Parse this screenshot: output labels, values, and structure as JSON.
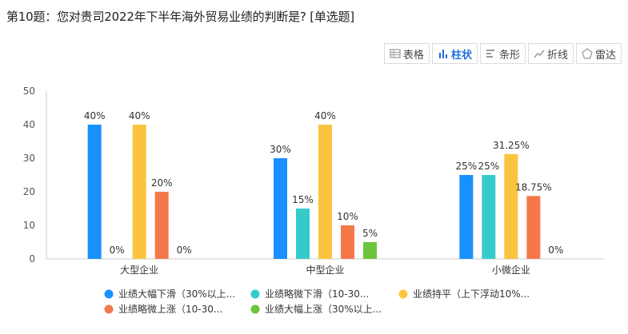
{
  "question": {
    "title": "第10题：您对贵司2022年下半年海外贸易业绩的判断是? [单选题]"
  },
  "toolbar": {
    "items": [
      {
        "label": "表格",
        "icon": "table-icon",
        "active": false
      },
      {
        "label": "柱状",
        "icon": "bar-chart-icon",
        "active": true
      },
      {
        "label": "条形",
        "icon": "horizontal-bar-icon",
        "active": false
      },
      {
        "label": "折线",
        "icon": "line-chart-icon",
        "active": false
      },
      {
        "label": "雷达",
        "icon": "radar-icon",
        "active": false
      }
    ]
  },
  "chart_data": {
    "type": "bar",
    "categories": [
      "大型企业",
      "中型企业",
      "小微企业"
    ],
    "ylim": [
      0,
      50
    ],
    "yticks": [
      0,
      10,
      20,
      30,
      40,
      50
    ],
    "series": [
      {
        "name": "业绩大幅下滑（30%以上...",
        "color": "#1890ff",
        "values": [
          40,
          30,
          25
        ],
        "labels": [
          "40%",
          "30%",
          "25%"
        ]
      },
      {
        "name": "业绩略微下滑（10-30...",
        "color": "#36cbcb",
        "values": [
          0,
          15,
          25
        ],
        "labels": [
          "0%",
          "15%",
          "25%"
        ]
      },
      {
        "name": "业绩持平（上下浮动10%...",
        "color": "#fbc43f",
        "values": [
          40,
          40,
          31.25
        ],
        "labels": [
          "40%",
          "40%",
          "31.25%"
        ]
      },
      {
        "name": "业绩略微上涨（10-30...",
        "color": "#f5784b",
        "values": [
          20,
          10,
          18.75
        ],
        "labels": [
          "20%",
          "10%",
          "18.75%"
        ]
      },
      {
        "name": "业绩大幅上涨（30%以上...",
        "color": "#6cc43d",
        "values": [
          0,
          5,
          0
        ],
        "labels": [
          "0%",
          "5%",
          "0%"
        ]
      }
    ],
    "grid": false,
    "legend": "bottom"
  }
}
